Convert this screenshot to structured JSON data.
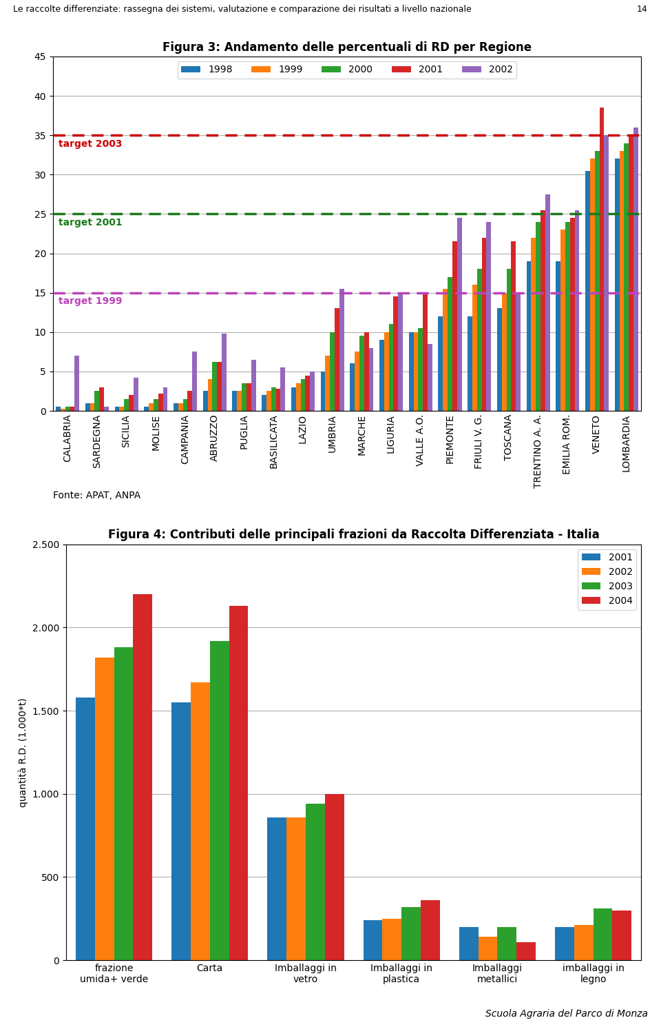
{
  "header": "Le raccolte differenziate: rassegna dei sistemi, valutazione e comparazione dei risultati a livello nazionale",
  "page": "14",
  "footer": "Scuola Agraria del Parco di Monza",
  "chart_data": [
    {
      "type": "bar",
      "title": "Figura 3: Andamento delle percentuali di RD per Regione",
      "categories": [
        "CALABRIA",
        "SARDEGNA",
        "SICILIA",
        "MOLISE",
        "CAMPANIA",
        "ABRUZZO",
        "PUGLIA",
        "BASILICATA",
        "LAZIO",
        "UMBRIA",
        "MARCHE",
        "LIGURIA",
        "VALLE A.O.",
        "PIEMONTE",
        "FRIULI V. G.",
        "TOSCANA",
        "TRENTINO A. A.",
        "EMILIA ROM.",
        "VENETO",
        "LOMBARDIA"
      ],
      "series": [
        {
          "name": "1998",
          "values": [
            0.5,
            1.0,
            0.5,
            0.5,
            1.0,
            2.5,
            2.5,
            2.0,
            3.0,
            5.0,
            6.0,
            9.0,
            10.0,
            12.0,
            12.0,
            13.0,
            19.0,
            19.0,
            30.5,
            32.0
          ]
        },
        {
          "name": "1999",
          "values": [
            0.3,
            1.0,
            0.5,
            1.0,
            1.0,
            4.0,
            2.5,
            2.5,
            3.5,
            7.0,
            7.5,
            10.0,
            10.0,
            15.5,
            16.0,
            15.0,
            22.0,
            23.0,
            32.0,
            33.0
          ]
        },
        {
          "name": "2000",
          "values": [
            0.5,
            2.5,
            1.5,
            1.5,
            1.5,
            6.2,
            3.5,
            3.0,
            4.0,
            10.0,
            9.5,
            11.0,
            10.5,
            17.0,
            18.0,
            18.0,
            24.0,
            24.0,
            33.0,
            34.0
          ]
        },
        {
          "name": "2001",
          "values": [
            0.5,
            3.0,
            2.0,
            2.2,
            2.5,
            6.2,
            3.5,
            2.8,
            4.5,
            13.0,
            10.0,
            14.5,
            15.0,
            21.5,
            22.0,
            21.5,
            25.5,
            24.5,
            38.5,
            35.0
          ]
        },
        {
          "name": "2002",
          "values": [
            7.0,
            0.5,
            4.2,
            3.0,
            7.5,
            9.8,
            6.5,
            5.5,
            5.0,
            15.5,
            8.0,
            15.0,
            8.5,
            24.5,
            24.0,
            15.0,
            27.5,
            25.5,
            35.0,
            36.0
          ]
        }
      ],
      "annotations": [
        {
          "text": "target 1999",
          "y": 15,
          "color": "#BB44BB"
        },
        {
          "text": "target 2001",
          "y": 25,
          "color": "#1A7A1A"
        },
        {
          "text": "target 2003",
          "y": 35,
          "color": "#CC0000"
        }
      ],
      "source": "Fonte: APAT, ANPA",
      "ylim": [
        0,
        45
      ],
      "yticks": [
        0,
        5,
        10,
        15,
        20,
        25,
        30,
        35,
        40,
        45
      ],
      "grid": true,
      "legend": "upper center"
    },
    {
      "type": "bar",
      "title": "Figura 4: Contributi delle principali frazioni da Raccolta Differenziata - Italia",
      "categories": [
        "frazione\numida+ verde",
        "Carta",
        "Imballaggi in\nvetro",
        "Imballaggi in\nplastica",
        "Imballaggi\nmetallici",
        "imballaggi in\nlegno"
      ],
      "series": [
        {
          "name": "2001",
          "values": [
            1580,
            1550,
            860,
            240,
            200,
            200
          ]
        },
        {
          "name": "2002",
          "values": [
            1820,
            1670,
            860,
            250,
            140,
            210
          ]
        },
        {
          "name": "2003",
          "values": [
            1880,
            1920,
            940,
            320,
            200,
            310
          ]
        },
        {
          "name": "2004",
          "values": [
            2200,
            2130,
            1000,
            360,
            110,
            300
          ]
        }
      ],
      "y_label": "quantità R.D. (1.000*t)",
      "ylim": [
        0,
        2500
      ],
      "yticks": [
        0,
        500,
        {
          "value": 1000,
          "label": "1.000"
        },
        {
          "value": 1500,
          "label": "1.500"
        },
        {
          "value": 2000,
          "label": "2.000"
        },
        {
          "value": 2500,
          "label": "2.500"
        }
      ],
      "grid": true,
      "legend": "upper right"
    }
  ]
}
